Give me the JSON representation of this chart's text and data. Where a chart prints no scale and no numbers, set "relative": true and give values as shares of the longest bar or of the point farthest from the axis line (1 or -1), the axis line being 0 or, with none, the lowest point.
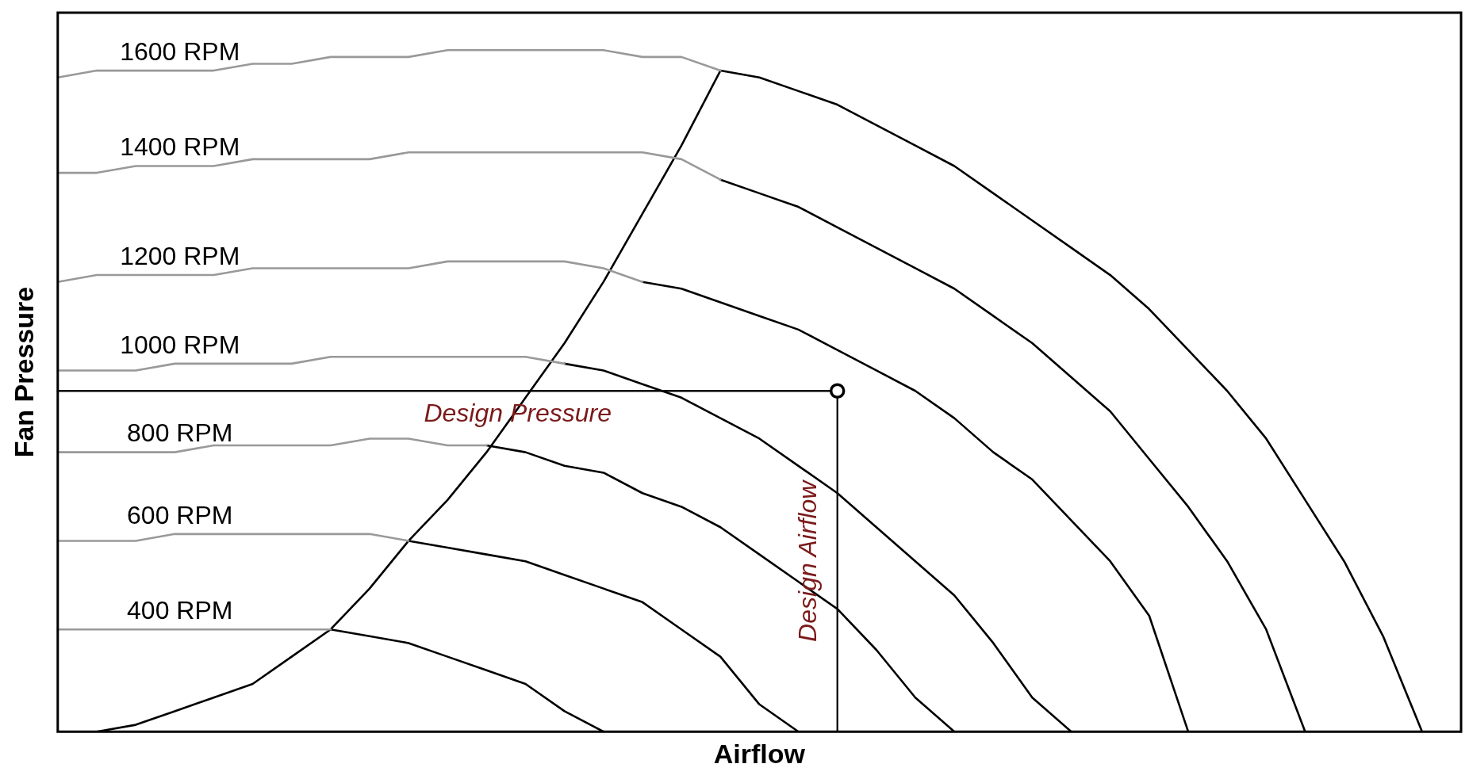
{
  "chart_data": {
    "type": "line",
    "relative": true,
    "xlabel": "Airflow",
    "ylabel": "Fan Pressure",
    "tick_labels": false,
    "legend": false,
    "grid": false,
    "categories": [
      null,
      null,
      null,
      null,
      null,
      null,
      null,
      null,
      null,
      null,
      null,
      null,
      null,
      null,
      null,
      null,
      null,
      null,
      null,
      null,
      null,
      null,
      null,
      null,
      null,
      null,
      null,
      null,
      null,
      null,
      null,
      null,
      null,
      null,
      null,
      null,
      null
    ],
    "series": [
      {
        "name": "1600 RPM",
        "color": "#999999",
        "values": [
          0.96,
          0.97,
          0.97,
          0.97,
          0.97,
          0.98,
          0.98,
          0.99,
          0.99,
          0.99,
          1.0,
          1.0,
          1.0,
          1.0,
          1.0,
          0.99,
          0.99,
          0.97,
          null,
          null,
          null,
          null,
          null,
          null,
          null,
          null,
          null,
          null,
          null,
          null,
          null,
          null,
          null,
          null,
          null,
          null,
          null
        ]
      },
      {
        "color": "#000000",
        "values": [
          null,
          null,
          null,
          null,
          null,
          null,
          null,
          null,
          null,
          null,
          null,
          null,
          null,
          null,
          null,
          null,
          null,
          0.97,
          0.96,
          0.94,
          0.92,
          0.89,
          0.86,
          0.83,
          0.79,
          0.75,
          0.71,
          0.67,
          0.62,
          0.56,
          0.5,
          0.43,
          0.34,
          0.25,
          0.14,
          0,
          null
        ]
      },
      {
        "name": "1400 RPM",
        "color": "#999999",
        "values": [
          0.82,
          0.82,
          0.83,
          0.83,
          0.83,
          0.84,
          0.84,
          0.84,
          0.84,
          0.85,
          0.85,
          0.85,
          0.85,
          0.85,
          0.85,
          0.85,
          0.84,
          0.81,
          null,
          null,
          null,
          null,
          null,
          null,
          null,
          null,
          null,
          null,
          null,
          null,
          null,
          null,
          null,
          null,
          null,
          null,
          null
        ]
      },
      {
        "color": "#000000",
        "values": [
          null,
          null,
          null,
          null,
          null,
          null,
          null,
          null,
          null,
          null,
          null,
          null,
          null,
          null,
          null,
          null,
          null,
          0.81,
          0.79,
          0.77,
          0.74,
          0.71,
          0.68,
          0.65,
          0.61,
          0.57,
          0.52,
          0.47,
          0.4,
          0.33,
          0.25,
          0.15,
          0,
          null,
          null,
          null,
          null
        ]
      },
      {
        "name": "1200 RPM",
        "color": "#999999",
        "values": [
          0.66,
          0.67,
          0.67,
          0.67,
          0.67,
          0.68,
          0.68,
          0.68,
          0.68,
          0.68,
          0.69,
          0.69,
          0.69,
          0.69,
          0.68,
          0.66,
          null,
          null,
          null,
          null,
          null,
          null,
          null,
          null,
          null,
          null,
          null,
          null,
          null,
          null,
          null,
          null,
          null,
          null,
          null,
          null,
          null
        ]
      },
      {
        "color": "#000000",
        "values": [
          null,
          null,
          null,
          null,
          null,
          null,
          null,
          null,
          null,
          null,
          null,
          null,
          null,
          null,
          null,
          0.66,
          0.65,
          0.63,
          0.61,
          0.59,
          0.56,
          0.53,
          0.5,
          0.46,
          0.41,
          0.37,
          0.31,
          0.25,
          0.17,
          0,
          null,
          null,
          null,
          null,
          null,
          null,
          null
        ]
      },
      {
        "name": "1000 RPM",
        "color": "#999999",
        "values": [
          0.53,
          0.53,
          0.53,
          0.54,
          0.54,
          0.54,
          0.54,
          0.55,
          0.55,
          0.55,
          0.55,
          0.55,
          0.55,
          0.54,
          null,
          null,
          null,
          null,
          null,
          null,
          null,
          null,
          null,
          null,
          null,
          null,
          null,
          null,
          null,
          null,
          null,
          null,
          null,
          null,
          null,
          null,
          null
        ]
      },
      {
        "color": "#000000",
        "values": [
          null,
          null,
          null,
          null,
          null,
          null,
          null,
          null,
          null,
          null,
          null,
          null,
          null,
          0.54,
          0.53,
          0.51,
          0.49,
          0.46,
          0.43,
          0.39,
          0.35,
          0.3,
          0.25,
          0.2,
          0.13,
          0.05,
          0,
          null,
          null,
          null,
          null,
          null,
          null,
          null,
          null,
          null,
          null
        ]
      },
      {
        "name": "800 RPM",
        "color": "#999999",
        "values": [
          0.41,
          0.41,
          0.41,
          0.41,
          0.42,
          0.42,
          0.42,
          0.42,
          0.43,
          0.43,
          0.42,
          0.42,
          null,
          null,
          null,
          null,
          null,
          null,
          null,
          null,
          null,
          null,
          null,
          null,
          null,
          null,
          null,
          null,
          null,
          null,
          null,
          null,
          null,
          null,
          null,
          null,
          null
        ]
      },
      {
        "color": "#000000",
        "values": [
          null,
          null,
          null,
          null,
          null,
          null,
          null,
          null,
          null,
          null,
          null,
          0.42,
          0.41,
          0.39,
          0.38,
          0.35,
          0.33,
          0.3,
          0.26,
          0.22,
          0.18,
          0.12,
          0.05,
          0,
          null,
          null,
          null,
          null,
          null,
          null,
          null,
          null,
          null,
          null,
          null,
          null,
          null
        ]
      },
      {
        "name": "600 RPM",
        "color": "#999999",
        "values": [
          0.28,
          0.28,
          0.28,
          0.29,
          0.29,
          0.29,
          0.29,
          0.29,
          0.29,
          0.28,
          null,
          null,
          null,
          null,
          null,
          null,
          null,
          null,
          null,
          null,
          null,
          null,
          null,
          null,
          null,
          null,
          null,
          null,
          null,
          null,
          null,
          null,
          null,
          null,
          null,
          null,
          null
        ]
      },
      {
        "color": "#000000",
        "values": [
          null,
          null,
          null,
          null,
          null,
          null,
          null,
          null,
          null,
          0.28,
          0.27,
          0.26,
          0.25,
          0.23,
          0.21,
          0.19,
          0.15,
          0.11,
          0.04,
          0,
          null,
          null,
          null,
          null,
          null,
          null,
          null,
          null,
          null,
          null,
          null,
          null,
          null,
          null,
          null,
          null,
          null
        ]
      },
      {
        "name": "400 RPM",
        "color": "#999999",
        "values": [
          0.15,
          0.15,
          0.15,
          0.15,
          0.15,
          0.15,
          0.15,
          0.15,
          null,
          null,
          null,
          null,
          null,
          null,
          null,
          null,
          null,
          null,
          null,
          null,
          null,
          null,
          null,
          null,
          null,
          null,
          null,
          null,
          null,
          null,
          null,
          null,
          null,
          null,
          null,
          null,
          null
        ]
      },
      {
        "color": "#000000",
        "values": [
          null,
          null,
          null,
          null,
          null,
          null,
          null,
          0.15,
          0.14,
          0.13,
          0.11,
          0.09,
          0.07,
          0.03,
          0,
          null,
          null,
          null,
          null,
          null,
          null,
          null,
          null,
          null,
          null,
          null,
          null,
          null,
          null,
          null,
          null,
          null,
          null,
          null,
          null,
          null,
          null
        ]
      },
      {
        "color": "#000000",
        "values": [
          0,
          0,
          0.01,
          0.03,
          0.05,
          0.07,
          0.11,
          0.15,
          0.21,
          0.28,
          0.34,
          0.41,
          0.49,
          0.57,
          0.66,
          0.76,
          0.86,
          0.97,
          null,
          null,
          null,
          null,
          null,
          null,
          null,
          null,
          null,
          null,
          null,
          null,
          null,
          null,
          null,
          null,
          null,
          null,
          null
        ]
      },
      {
        "color": "#000000",
        "values": [
          0.5,
          0.5,
          0.5,
          0.5,
          0.5,
          0.5,
          0.5,
          0.5,
          0.5,
          0.5,
          0.5,
          0.5,
          0.5,
          0.5,
          0.5,
          0.5,
          0.5,
          0.5,
          0.5,
          0.5,
          0.5,
          null,
          null,
          null,
          null,
          null,
          null,
          null,
          null,
          null,
          null,
          null,
          null,
          null,
          null,
          null,
          null
        ]
      }
    ],
    "annotations": [
      {
        "text": "Design Pressure",
        "y": 0.5
      },
      "Design Airflow"
    ]
  }
}
